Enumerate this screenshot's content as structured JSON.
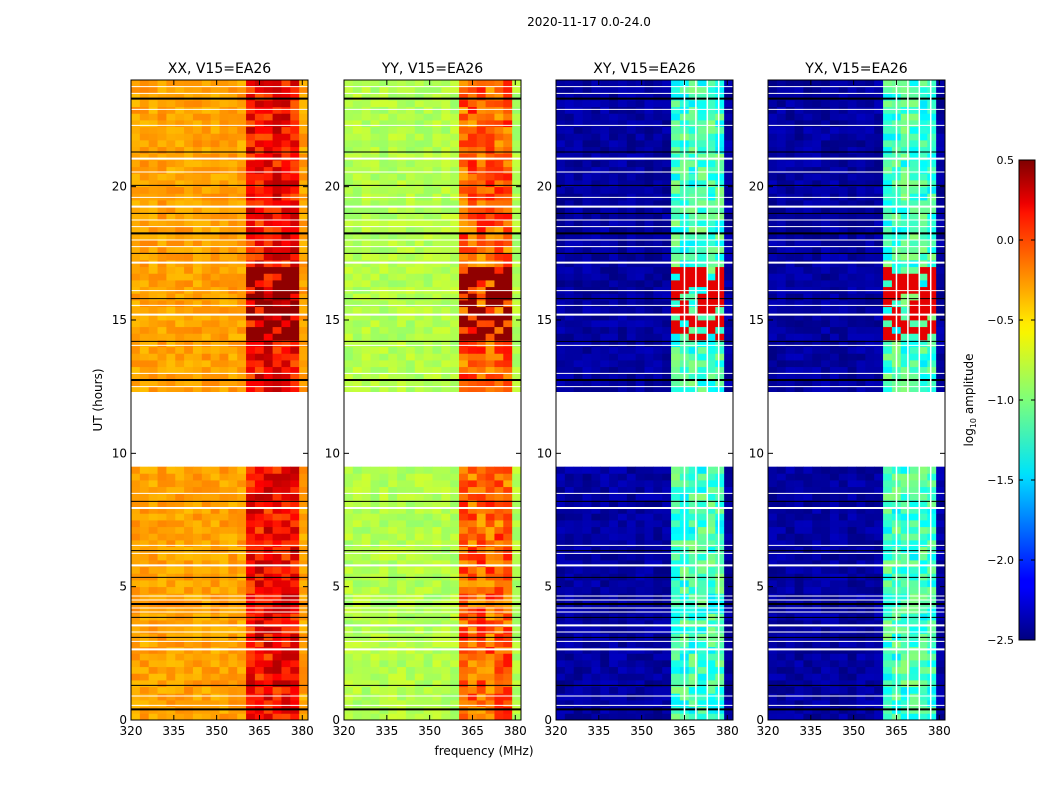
{
  "chart_data": {
    "type": "heatmap",
    "suptitle": "2020-11-17 0.0-24.0",
    "xlabel": "frequency (MHz)",
    "ylabel": "UT (hours)",
    "xlim": [
      320,
      382
    ],
    "ylim": [
      0,
      24
    ],
    "xticks": [
      "320",
      "335",
      "350",
      "365",
      "380"
    ],
    "yticks": [
      "0",
      "5",
      "10",
      "15",
      "20"
    ],
    "flagged_ut_gap": [
      9.6,
      12.3
    ],
    "rfi_band_mhz": [
      360,
      380
    ],
    "flagged_rows_ut": [
      0.4,
      0.55,
      0.9,
      1.3,
      2.65,
      2.95,
      3.1,
      3.3,
      3.55,
      3.85,
      4.05,
      4.2,
      4.35,
      4.5,
      4.65,
      5.35,
      5.8,
      6.25,
      6.35,
      6.55,
      7.95,
      8.2,
      8.5,
      12.5,
      12.75,
      13.0,
      14.05,
      14.2,
      15.2,
      15.55,
      15.8,
      16.1,
      17.15,
      17.5,
      17.75,
      18.0,
      18.25,
      18.5,
      18.75,
      19.0,
      19.25,
      19.6,
      20.05,
      20.55,
      21.05,
      21.3,
      22.3,
      22.9,
      23.3,
      23.5,
      23.75
    ],
    "panels": [
      {
        "title": "XX, V15=EA26",
        "base_log_amp": -0.35,
        "rfi_log_amp": 0.1,
        "flare_log_amp": 0.45
      },
      {
        "title": "YY, V15=EA26",
        "base_log_amp": -0.85,
        "rfi_log_amp": -0.15,
        "flare_log_amp": 0.45
      },
      {
        "title": "XY, V15=EA26",
        "base_log_amp": -2.4,
        "rfi_log_amp": -1.2,
        "flare_log_amp": 0.2
      },
      {
        "title": "YX, V15=EA26",
        "base_log_amp": -2.4,
        "rfi_log_amp": -1.2,
        "flare_log_amp": 0.2
      }
    ],
    "colorbar": {
      "label": "log10 amplitude",
      "label_main": "log",
      "label_sub": "10",
      "label_rest": " amplitude",
      "range": [
        -2.5,
        0.5
      ],
      "ticks": [
        "0.5",
        "0.0",
        "−0.5",
        "−1.0",
        "−1.5",
        "−2.0",
        "−2.5"
      ],
      "colormap": "jet"
    }
  }
}
